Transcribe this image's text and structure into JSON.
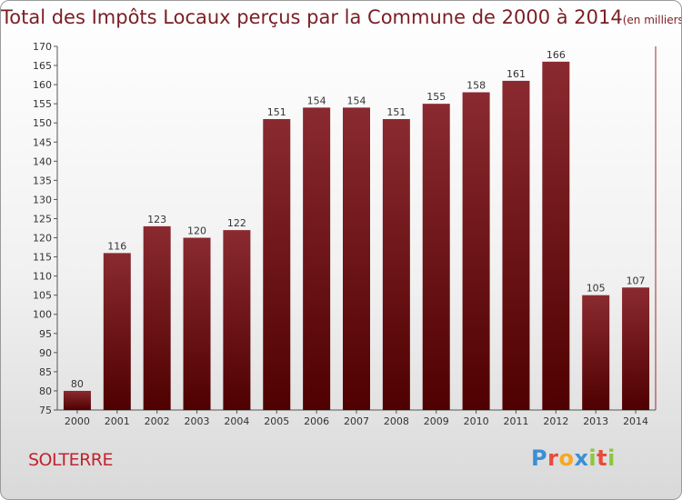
{
  "chart_data": {
    "type": "bar",
    "title": "Total des Impôts Locaux perçus par la Commune de 2000 à 2014",
    "unit_note": "(en milliers d'€)",
    "categories": [
      "2000",
      "2001",
      "2002",
      "2003",
      "2004",
      "2005",
      "2006",
      "2007",
      "2008",
      "2009",
      "2010",
      "2011",
      "2012",
      "2013",
      "2014"
    ],
    "values": [
      80,
      116,
      123,
      120,
      122,
      151,
      154,
      154,
      151,
      155,
      158,
      161,
      166,
      105,
      107
    ],
    "ylim": [
      75,
      170
    ],
    "yticks": [
      75,
      80,
      85,
      90,
      95,
      100,
      105,
      110,
      115,
      120,
      125,
      130,
      135,
      140,
      145,
      150,
      155,
      160,
      165,
      170
    ],
    "grid": false,
    "bar_color": "#7d1e22"
  },
  "place_name": "SOLTERRE",
  "logo": {
    "letters": [
      "P",
      "r",
      "o",
      "x",
      "i",
      "t",
      "i"
    ],
    "colors": [
      "#3a8fd6",
      "#e94b3c",
      "#f6a821",
      "#3a8fd6",
      "#8cc63f",
      "#e94b3c",
      "#8cc63f"
    ]
  }
}
